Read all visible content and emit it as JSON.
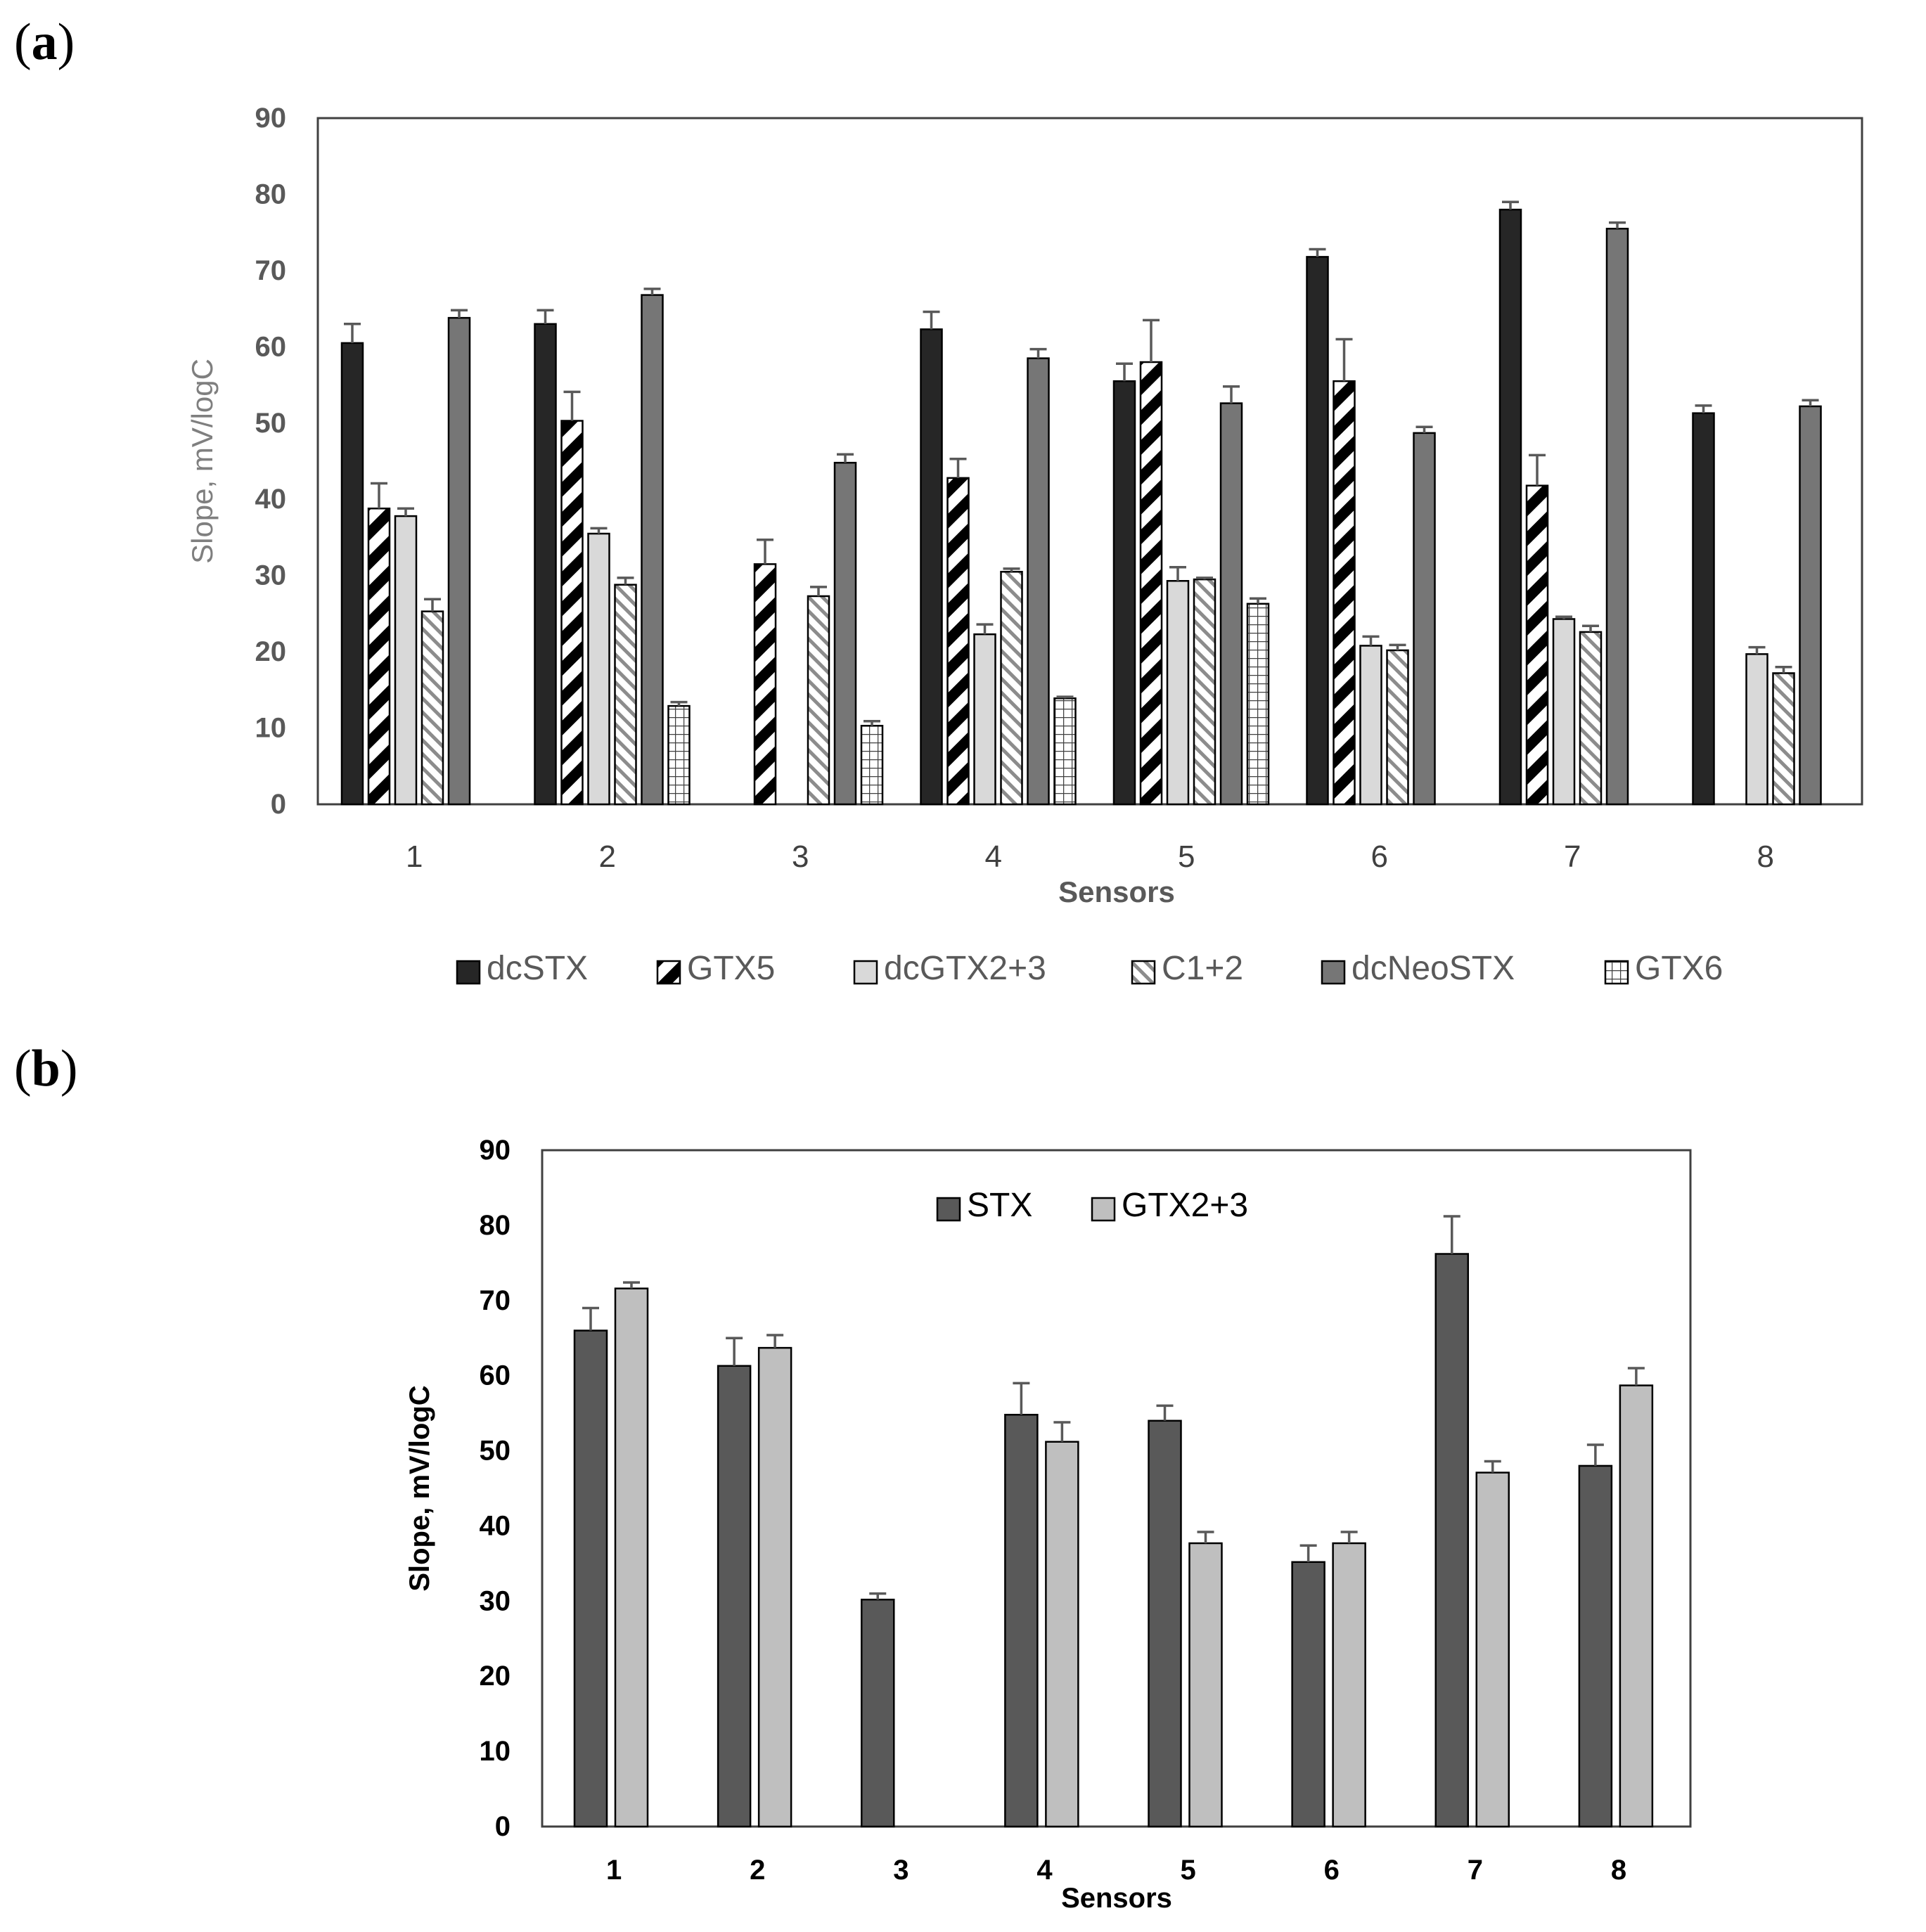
{
  "panels": {
    "a": {
      "label_open": "(",
      "label_letter": "a",
      "label_close": ")"
    },
    "b": {
      "label_open": "(",
      "label_letter": "b",
      "label_close": ")"
    }
  },
  "chart_data": [
    {
      "type": "bar",
      "title": "",
      "xlabel": "Sensors",
      "ylabel": "Slope, mV/logC",
      "ylim": [
        0,
        90
      ],
      "yticks": [
        0,
        10,
        20,
        30,
        40,
        50,
        60,
        70,
        80,
        90
      ],
      "grid": false,
      "legend_position": "bottom",
      "categories": [
        "1",
        "2",
        "3",
        "4",
        "5",
        "6",
        "7",
        "8"
      ],
      "series": [
        {
          "name": "dcSTX",
          "fill": "#262626",
          "pattern": "solid",
          "values": [
            60.5,
            63,
            null,
            62.3,
            55.5,
            71.8,
            78,
            51.3
          ],
          "errors": [
            2.5,
            1.8,
            0,
            2.3,
            2.3,
            1.0,
            1.0,
            1.0
          ]
        },
        {
          "name": "GTX5",
          "fill": "#000000",
          "pattern": "wide-diagonal",
          "values": [
            38.8,
            50.3,
            31.5,
            42.8,
            58,
            55.5,
            41.8,
            null
          ],
          "errors": [
            3.3,
            3.8,
            3.2,
            2.5,
            5.5,
            5.5,
            4.0,
            0
          ]
        },
        {
          "name": "dcGTX2+3",
          "fill": "#d9d9d9",
          "pattern": "solid",
          "values": [
            37.8,
            35.5,
            null,
            22.3,
            29.3,
            20.8,
            24.3,
            19.7
          ],
          "errors": [
            1.0,
            0.7,
            0,
            1.3,
            1.8,
            1.2,
            0.3,
            0.9
          ]
        },
        {
          "name": "C1+2",
          "fill": "#bfbfbf",
          "pattern": "fine-diagonal",
          "values": [
            25.3,
            28.8,
            27.3,
            30.5,
            29.5,
            20.2,
            22.6,
            17.2
          ],
          "errors": [
            1.6,
            0.9,
            1.2,
            0.4,
            0.2,
            0.7,
            0.8,
            0.8
          ]
        },
        {
          "name": "dcNeoSTX",
          "fill": "#767676",
          "pattern": "solid",
          "values": [
            63.8,
            66.8,
            44.8,
            58.5,
            52.6,
            48.7,
            75.5,
            52.2
          ],
          "errors": [
            1.0,
            0.8,
            1.1,
            1.2,
            2.2,
            0.8,
            0.8,
            0.8
          ]
        },
        {
          "name": "GTX6",
          "fill": "#ffffff",
          "pattern": "grid",
          "values": [
            null,
            12.9,
            10.3,
            13.9,
            26.3,
            null,
            null,
            null
          ],
          "errors": [
            0,
            0.5,
            0.6,
            0.2,
            0.7,
            0,
            0,
            0
          ]
        }
      ]
    },
    {
      "type": "bar",
      "title": "",
      "xlabel": "Sensors",
      "ylabel": "Slope, mV/logC",
      "ylim": [
        0,
        90
      ],
      "yticks": [
        0,
        10,
        20,
        30,
        40,
        50,
        60,
        70,
        80,
        90
      ],
      "grid": false,
      "legend_position": "top-center",
      "categories": [
        "1",
        "2",
        "3",
        "4",
        "5",
        "6",
        "7",
        "8"
      ],
      "series": [
        {
          "name": "STX",
          "fill": "#595959",
          "pattern": "solid",
          "values": [
            66,
            61.3,
            30.2,
            54.8,
            54,
            35.2,
            76.2,
            48
          ],
          "errors": [
            3.0,
            3.7,
            0.8,
            4.2,
            2.0,
            2.2,
            5.0,
            2.8
          ]
        },
        {
          "name": "GTX2+3",
          "fill": "#bfbfbf",
          "pattern": "solid",
          "values": [
            71.6,
            63.7,
            null,
            51.2,
            37.7,
            37.7,
            47.1,
            58.7
          ],
          "errors": [
            0.8,
            1.7,
            0,
            2.6,
            1.5,
            1.5,
            1.5,
            2.3
          ]
        }
      ]
    }
  ]
}
